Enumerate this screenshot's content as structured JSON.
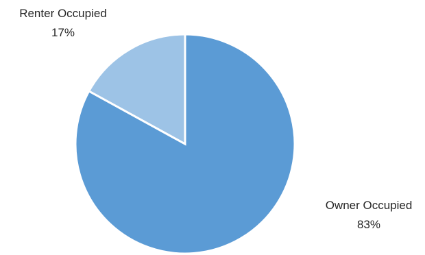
{
  "chart_data": {
    "type": "pie",
    "categories": [
      "Owner Occupied",
      "Renter Occupied"
    ],
    "values": [
      83,
      17
    ],
    "labels": [
      {
        "name": "Owner Occupied",
        "percent": "83%"
      },
      {
        "name": "Renter Occupied",
        "percent": "17%"
      }
    ],
    "colors": [
      "#5b9bd5",
      "#9dc3e6"
    ],
    "start_angle": "12 o'clock",
    "direction": "clockwise",
    "legend": "none"
  }
}
